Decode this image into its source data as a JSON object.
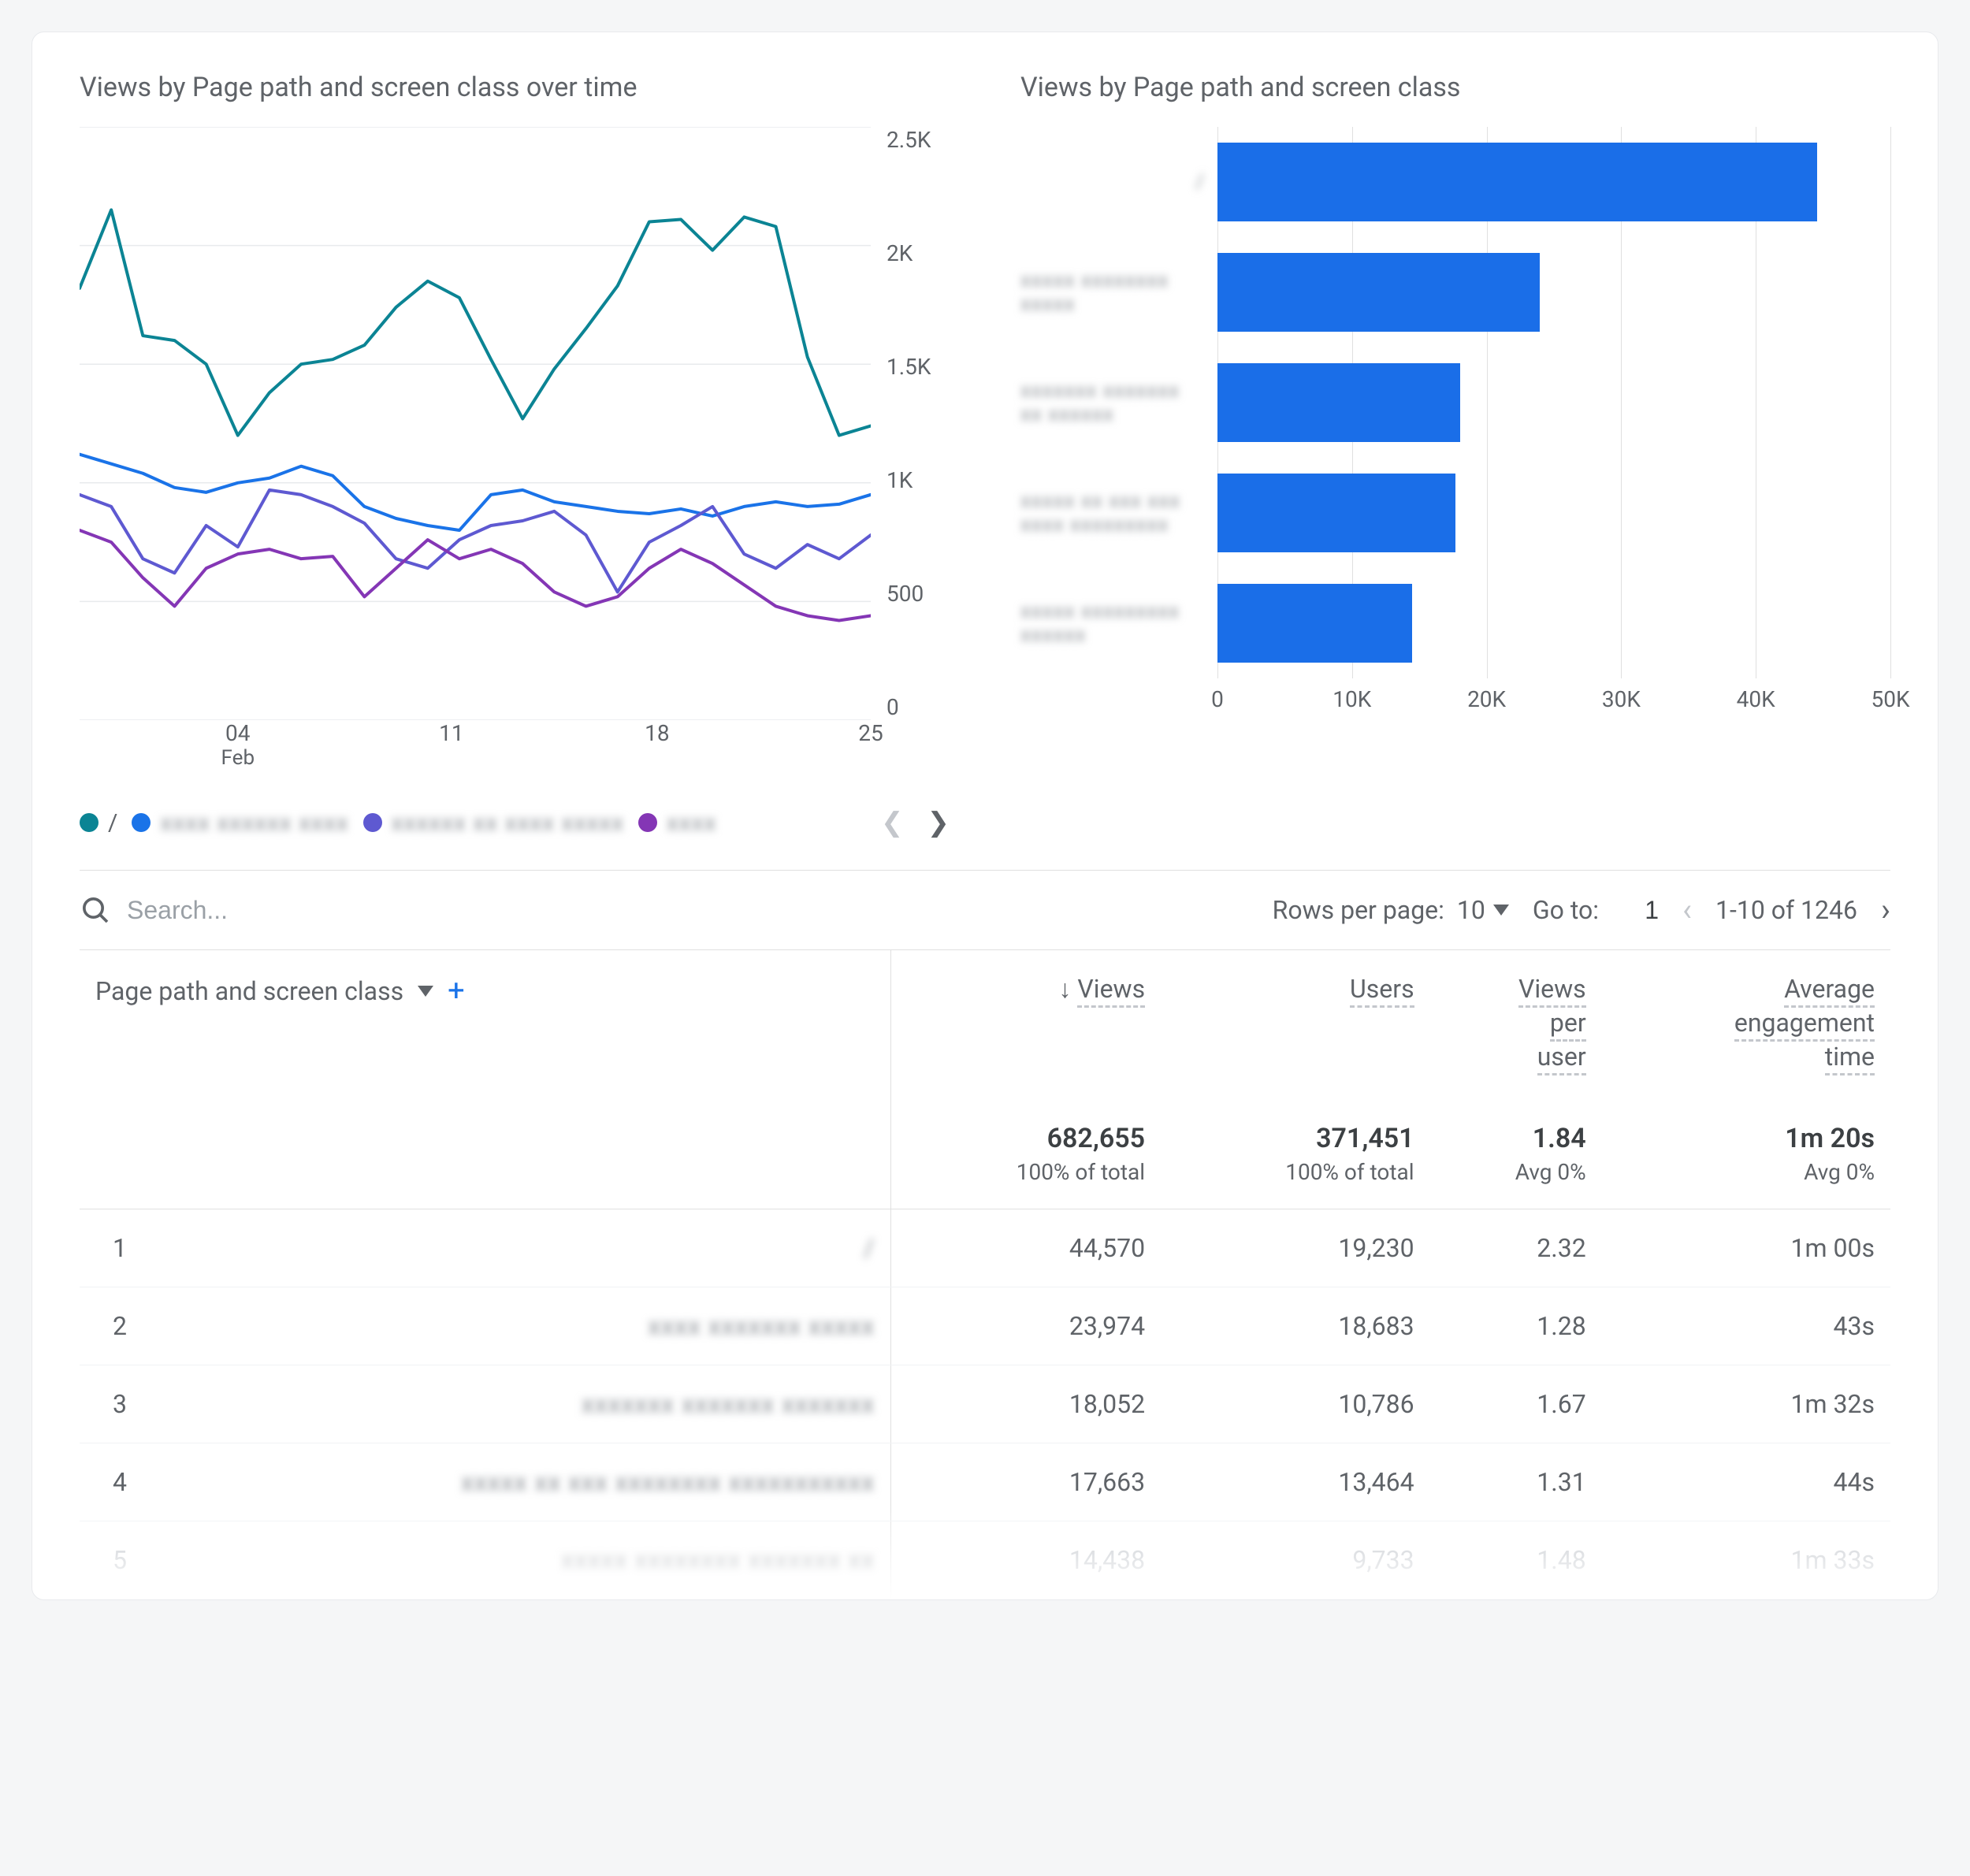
{
  "lineChart": {
    "title": "Views by Page path and screen class over time",
    "type": "line",
    "ylim": [
      0,
      2500
    ],
    "yticks": [
      "2.5K",
      "2K",
      "1.5K",
      "1K",
      "500",
      "0"
    ],
    "xticks": [
      {
        "pos": 0.2,
        "label": "04",
        "sub": "Feb"
      },
      {
        "pos": 0.47,
        "label": "11",
        "sub": ""
      },
      {
        "pos": 0.73,
        "label": "18",
        "sub": ""
      },
      {
        "pos": 1.0,
        "label": "25",
        "sub": ""
      }
    ],
    "grid_color": "#e8eaed",
    "background_color": "#ffffff",
    "line_width": 4,
    "series": [
      {
        "name": "/",
        "color": "#0b8494",
        "legend_color": "#0b8494",
        "values": [
          1820,
          2150,
          1620,
          1600,
          1500,
          1200,
          1380,
          1500,
          1520,
          1580,
          1740,
          1850,
          1780,
          1520,
          1270,
          1480,
          1650,
          1830,
          2100,
          2110,
          1980,
          2120,
          2080,
          1530,
          1200,
          1240
        ]
      },
      {
        "name": "(blurred 1)",
        "color": "#1a73e8",
        "legend_color": "#1a73e8",
        "values": [
          1120,
          1080,
          1040,
          980,
          960,
          1000,
          1020,
          1070,
          1030,
          900,
          850,
          820,
          800,
          950,
          970,
          920,
          900,
          880,
          870,
          890,
          860,
          900,
          920,
          900,
          910,
          950
        ]
      },
      {
        "name": "(blurred 2)",
        "color": "#5e59d1",
        "legend_color": "#5e59d1",
        "values": [
          950,
          900,
          680,
          620,
          820,
          730,
          970,
          950,
          900,
          830,
          680,
          640,
          760,
          820,
          840,
          880,
          780,
          540,
          750,
          820,
          900,
          700,
          640,
          740,
          680,
          780
        ]
      },
      {
        "name": "(blurred 3)",
        "color": "#8436b5",
        "legend_color": "#8436b5",
        "values": [
          800,
          750,
          600,
          480,
          640,
          700,
          720,
          680,
          690,
          520,
          640,
          760,
          680,
          720,
          660,
          540,
          480,
          520,
          640,
          720,
          660,
          570,
          480,
          440,
          420,
          440
        ]
      }
    ],
    "legend": [
      {
        "color": "#0b8494",
        "label": "/",
        "blurred": false
      },
      {
        "color": "#1a73e8",
        "label": "xxxx xxxxxx xxxx",
        "blurred": true
      },
      {
        "color": "#5e59d1",
        "label": "xxxxxx xx xxxx xxxxx",
        "blurred": true
      },
      {
        "color": "#8436b5",
        "label": "xxxx",
        "blurred": true
      }
    ]
  },
  "barChart": {
    "title": "Views by Page path and screen class",
    "type": "bar-horizontal",
    "xlim": [
      0,
      50000
    ],
    "xticks": [
      {
        "pos": 0.0,
        "label": "0"
      },
      {
        "pos": 0.2,
        "label": "10K"
      },
      {
        "pos": 0.4,
        "label": "20K"
      },
      {
        "pos": 0.6,
        "label": "30K"
      },
      {
        "pos": 0.8,
        "label": "40K"
      },
      {
        "pos": 1.0,
        "label": "50K"
      }
    ],
    "bar_color": "#1a6ee8",
    "grid_color": "#e0e0e0",
    "bars": [
      {
        "label": "/",
        "blurred": true,
        "value": 44570,
        "label_lines": 1
      },
      {
        "label": "xxxxx xxxxxxxx xxxxx",
        "blurred": true,
        "value": 23974,
        "label_lines": 2
      },
      {
        "label": "xxxxxxx xxxxxxx xx xxxxxx",
        "blurred": true,
        "value": 18052,
        "label_lines": 2
      },
      {
        "label": "xxxxx xx xxx xxx xxxx xxxxxxxxx",
        "blurred": true,
        "value": 17663,
        "label_lines": 2
      },
      {
        "label": "xxxxx xxxxxxxxx xxxxxx",
        "blurred": true,
        "value": 14438,
        "label_lines": 2
      }
    ]
  },
  "controls": {
    "search_placeholder": "Search...",
    "rows_label": "Rows per page:",
    "rows_value": "10",
    "goto_label": "Go to:",
    "goto_value": "1",
    "range_text": "1-10 of 1246"
  },
  "table": {
    "dimension_header": "Page path and screen class",
    "columns": [
      "Views",
      "Users",
      "Views per user",
      "Average engagement time"
    ],
    "sort_arrow": "↓",
    "summary": {
      "views": "682,655",
      "views_sub": "100% of total",
      "users": "371,451",
      "users_sub": "100% of total",
      "vpu": "1.84",
      "vpu_sub": "Avg 0%",
      "aet": "1m 20s",
      "aet_sub": "Avg 0%"
    },
    "rows": [
      {
        "idx": "1",
        "path": "/",
        "blurred": true,
        "views": "44,570",
        "users": "19,230",
        "vpu": "2.32",
        "aet": "1m 00s"
      },
      {
        "idx": "2",
        "path": "xxxx xxxxxxx xxxxx",
        "blurred": true,
        "views": "23,974",
        "users": "18,683",
        "vpu": "1.28",
        "aet": "43s"
      },
      {
        "idx": "3",
        "path": "xxxxxxx xxxxxxx xxxxxxx",
        "blurred": true,
        "views": "18,052",
        "users": "10,786",
        "vpu": "1.67",
        "aet": "1m 32s"
      },
      {
        "idx": "4",
        "path": "xxxxx xx xxx xxxxxxxx xxxxxxxxxxx",
        "blurred": true,
        "views": "17,663",
        "users": "13,464",
        "vpu": "1.31",
        "aet": "44s"
      },
      {
        "idx": "5",
        "path": "xxxxx xxxxxxxx xxxxxxx xx",
        "blurred": true,
        "views": "14,438",
        "users": "9,733",
        "vpu": "1.48",
        "aet": "1m 33s",
        "faded": true
      }
    ]
  }
}
